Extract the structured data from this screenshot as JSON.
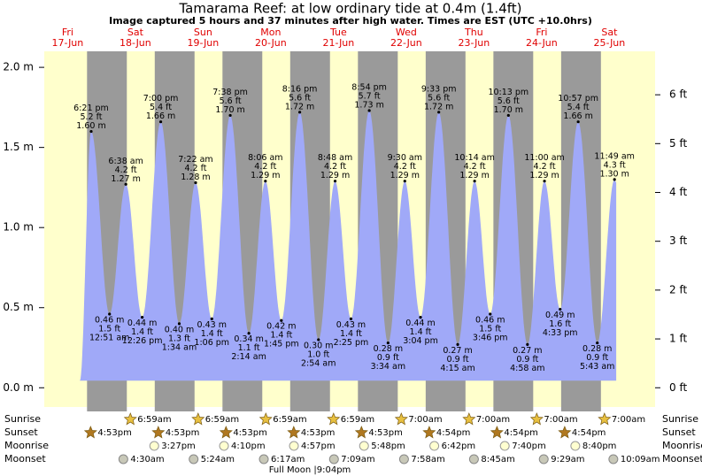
{
  "chart_data": {
    "type": "tide",
    "title": "Tamarama Reef: at low  ordinary tide at 0.4m (1.4ft)",
    "subtitle": "Image captured 5 hours and 37 minutes after high water. Times are EST (UTC +10.0hrs)",
    "ylim": [
      -0.12,
      2.1
    ],
    "yticks": [
      {
        "value": 0,
        "label": "0.0 m"
      },
      {
        "value": 0.5,
        "label": "0.5 m"
      },
      {
        "value": 1,
        "label": "1.0 m"
      },
      {
        "value": 1.5,
        "label": "1.5 m"
      },
      {
        "value": 2,
        "label": "2.0 m"
      }
    ],
    "y2lim": [
      -0.394,
      6.89
    ],
    "y2ticks": [
      {
        "value": 0,
        "label": "0 ft"
      },
      {
        "value": 1,
        "label": "1 ft"
      },
      {
        "value": 2,
        "label": "2 ft"
      },
      {
        "value": 3,
        "label": "3 ft"
      },
      {
        "value": 4,
        "label": "4 ft"
      },
      {
        "value": 5,
        "label": "5 ft"
      },
      {
        "value": 6,
        "label": "6 ft"
      }
    ],
    "colors": {
      "day": "#ffffcc",
      "night": "#9a9a9a",
      "tide": "#a0a9f8"
    },
    "row_labels": {
      "sunrise": "Sunrise",
      "sunset": "Sunset",
      "moonrise": "Moonrise",
      "moonset": "Moonset"
    },
    "footer": "Full Moon |9:04pm",
    "days": [
      {
        "weekday": "Fri",
        "date": "17-Jun",
        "sunset": "4:53pm",
        "tides": [
          {
            "time": "6:21 pm",
            "height": 1.6,
            "height_label": "1.60 m",
            "feet": "5.2 ft"
          }
        ]
      },
      {
        "weekday": "Sat",
        "date": "18-Jun",
        "sunrise": "6:59am",
        "sunset": "4:53pm",
        "moonrise": "3:27pm",
        "moonset": "4:30am",
        "tides": [
          {
            "time": "12:51 am",
            "height": 0.46,
            "height_label": "0.46 m",
            "feet": "1.5 ft"
          },
          {
            "time": "6:38 am",
            "height": 1.27,
            "height_label": "1.27 m",
            "feet": "4.2 ft"
          },
          {
            "time": "12:26 pm",
            "height": 0.44,
            "height_label": "0.44 m",
            "feet": "1.4 ft"
          },
          {
            "time": "7:00 pm",
            "height": 1.66,
            "height_label": "1.66 m",
            "feet": "5.4 ft"
          }
        ]
      },
      {
        "weekday": "Sun",
        "date": "19-Jun",
        "sunrise": "6:59am",
        "sunset": "4:53pm",
        "moonrise": "4:10pm",
        "moonset": "5:24am",
        "tides": [
          {
            "time": "1:34 am",
            "height": 0.4,
            "height_label": "0.40 m",
            "feet": "1.3 ft"
          },
          {
            "time": "7:22 am",
            "height": 1.28,
            "height_label": "1.28 m",
            "feet": "4.2 ft"
          },
          {
            "time": "1:06 pm",
            "height": 0.43,
            "height_label": "0.43 m",
            "feet": "1.4 ft"
          },
          {
            "time": "7:38 pm",
            "height": 1.7,
            "height_label": "1.70 m",
            "feet": "5.6 ft"
          }
        ]
      },
      {
        "weekday": "Mon",
        "date": "20-Jun",
        "sunrise": "6:59am",
        "sunset": "4:53pm",
        "moonrise": "4:57pm",
        "moonset": "6:17am",
        "tides": [
          {
            "time": "2:14 am",
            "height": 0.34,
            "height_label": "0.34 m",
            "feet": "1.1 ft"
          },
          {
            "time": "8:06 am",
            "height": 1.29,
            "height_label": "1.29 m",
            "feet": "4.2 ft"
          },
          {
            "time": "1:45 pm",
            "height": 0.42,
            "height_label": "0.42 m",
            "feet": "1.4 ft"
          },
          {
            "time": "8:16 pm",
            "height": 1.72,
            "height_label": "1.72 m",
            "feet": "5.6 ft"
          }
        ]
      },
      {
        "weekday": "Tue",
        "date": "21-Jun",
        "sunrise": "6:59am",
        "sunset": "4:53pm",
        "moonrise": "5:48pm",
        "moonset": "7:09am",
        "tides": [
          {
            "time": "2:54 am",
            "height": 0.3,
            "height_label": "0.30 m",
            "feet": "1.0 ft"
          },
          {
            "time": "8:48 am",
            "height": 1.29,
            "height_label": "1.29 m",
            "feet": "4.2 ft"
          },
          {
            "time": "2:25 pm",
            "height": 0.43,
            "height_label": "0.43 m",
            "feet": "1.4 ft"
          },
          {
            "time": "8:54 pm",
            "height": 1.73,
            "height_label": "1.73 m",
            "feet": "5.7 ft"
          }
        ]
      },
      {
        "weekday": "Wed",
        "date": "22-Jun",
        "sunrise": "7:00am",
        "sunset": "4:54pm",
        "moonrise": "6:42pm",
        "moonset": "7:58am",
        "tides": [
          {
            "time": "3:34 am",
            "height": 0.28,
            "height_label": "0.28 m",
            "feet": "0.9 ft"
          },
          {
            "time": "9:30 am",
            "height": 1.29,
            "height_label": "1.29 m",
            "feet": "4.2 ft"
          },
          {
            "time": "3:04 pm",
            "height": 0.44,
            "height_label": "0.44 m",
            "feet": "1.4 ft"
          },
          {
            "time": "9:33 pm",
            "height": 1.72,
            "height_label": "1.72 m",
            "feet": "5.6 ft"
          }
        ]
      },
      {
        "weekday": "Thu",
        "date": "23-Jun",
        "sunrise": "7:00am",
        "sunset": "4:54pm",
        "moonrise": "7:40pm",
        "moonset": "8:45am",
        "tides": [
          {
            "time": "4:15 am",
            "height": 0.27,
            "height_label": "0.27 m",
            "feet": "0.9 ft"
          },
          {
            "time": "10:14 am",
            "height": 1.29,
            "height_label": "1.29 m",
            "feet": "4.2 ft"
          },
          {
            "time": "3:46 pm",
            "height": 0.46,
            "height_label": "0.46 m",
            "feet": "1.5 ft"
          },
          {
            "time": "10:13 pm",
            "height": 1.7,
            "height_label": "1.70 m",
            "feet": "5.6 ft"
          }
        ]
      },
      {
        "weekday": "Fri",
        "date": "24-Jun",
        "sunrise": "7:00am",
        "sunset": "4:54pm",
        "moonrise": "8:40pm",
        "moonset": "9:29am",
        "tides": [
          {
            "time": "4:58 am",
            "height": 0.27,
            "height_label": "0.27 m",
            "feet": "0.9 ft"
          },
          {
            "time": "11:00 am",
            "height": 1.29,
            "height_label": "1.29 m",
            "feet": "4.2 ft"
          },
          {
            "time": "4:33 pm",
            "height": 0.49,
            "height_label": "0.49 m",
            "feet": "1.6 ft"
          },
          {
            "time": "10:57 pm",
            "height": 1.66,
            "height_label": "1.66 m",
            "feet": "5.4 ft"
          }
        ]
      },
      {
        "weekday": "Sat",
        "date": "25-Jun",
        "sunrise": "7:00am",
        "moonset": "10:09am",
        "tides": [
          {
            "time": "5:43 am",
            "height": 0.28,
            "height_label": "0.28 m",
            "feet": "0.9 ft"
          },
          {
            "time": "11:49 am",
            "height": 1.3,
            "height_label": "1.30 m",
            "feet": "4.3 ft"
          }
        ]
      }
    ]
  }
}
